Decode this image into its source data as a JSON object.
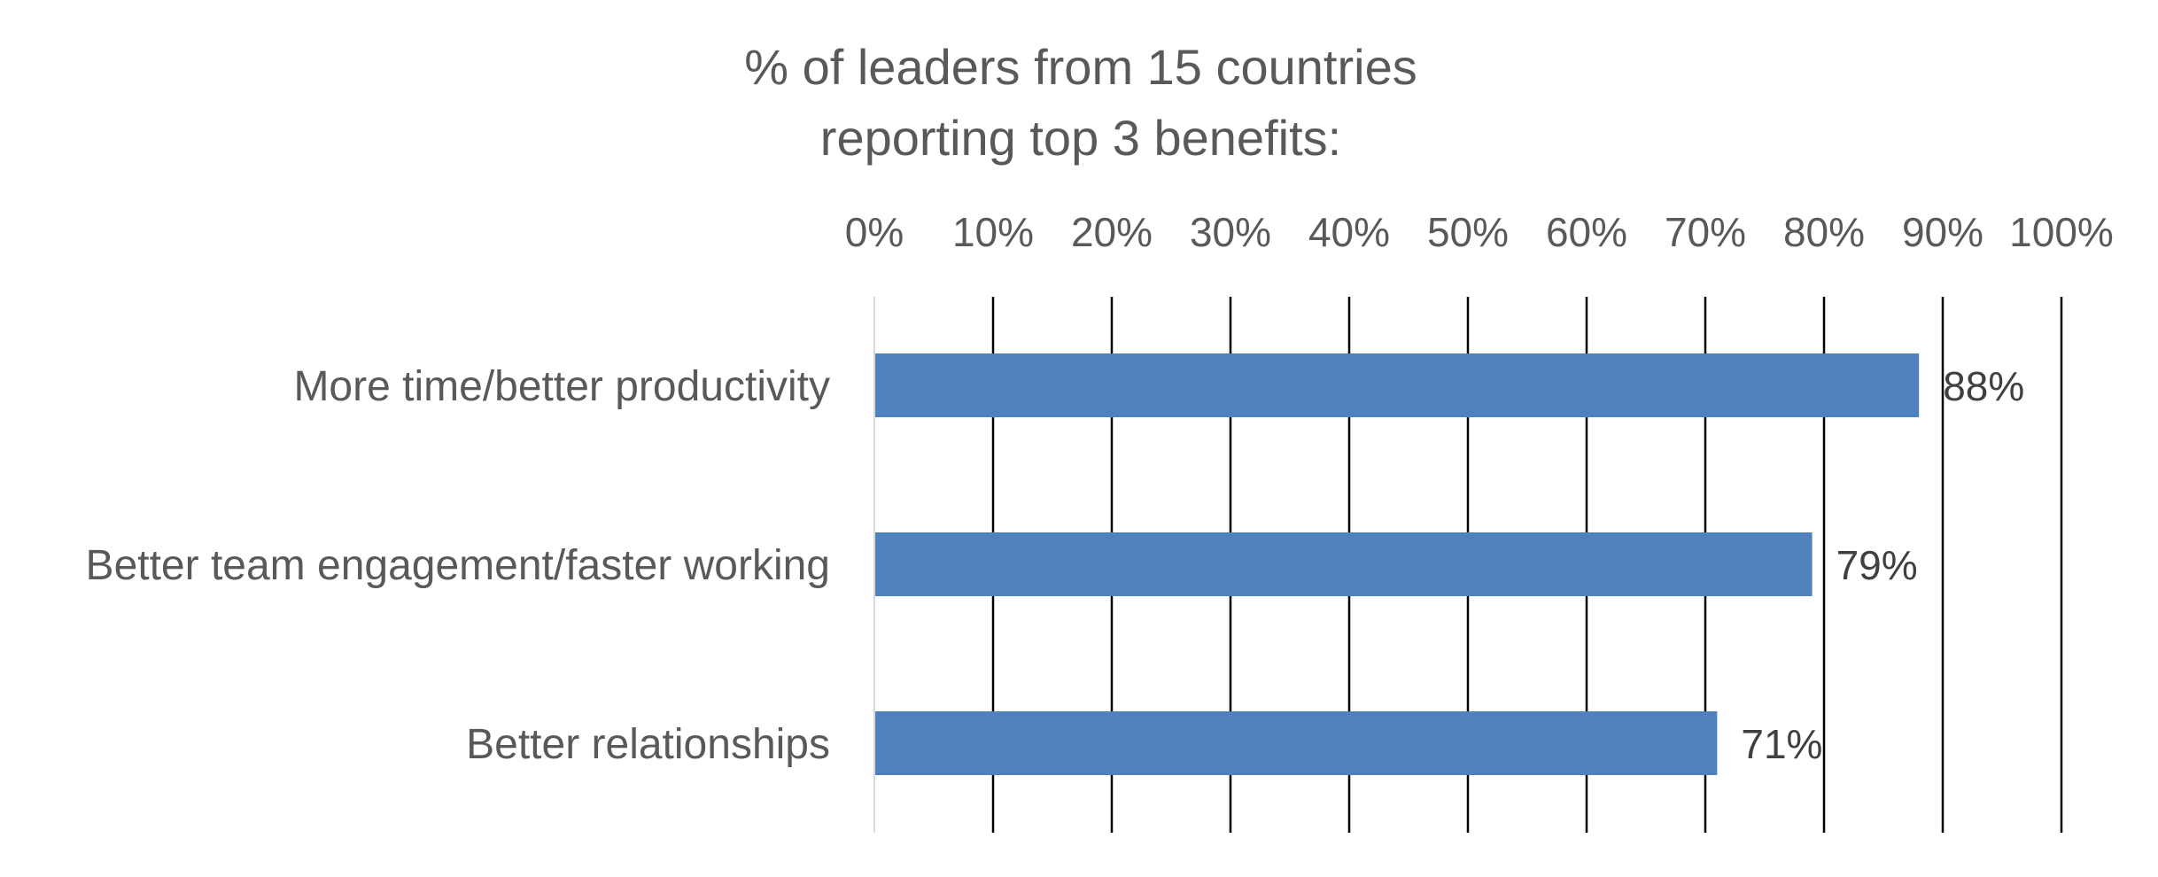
{
  "chart_data": {
    "type": "bar",
    "orientation": "horizontal",
    "title": [
      "% of leaders from 15 countries",
      "reporting top 3 benefits:"
    ],
    "categories": [
      "More time/better productivity",
      "Better team engagement/faster working",
      "Better relationships"
    ],
    "values": [
      88,
      79,
      71
    ],
    "data_labels": [
      "88%",
      "79%",
      "71%"
    ],
    "xlim": [
      0,
      100
    ],
    "x_ticks": [
      0,
      10,
      20,
      30,
      40,
      50,
      60,
      70,
      80,
      90,
      100
    ],
    "x_tick_labels": [
      "0%",
      "10%",
      "20%",
      "30%",
      "40%",
      "50%",
      "60%",
      "70%",
      "80%",
      "90%",
      "100%"
    ],
    "x_axis_position": "top",
    "grid": true,
    "legend": "none",
    "colors": {
      "bar": "#4f81bd",
      "gridline": "#000000",
      "axis": "#d9d9d9",
      "text": "#595959",
      "data_label": "#404040"
    }
  }
}
